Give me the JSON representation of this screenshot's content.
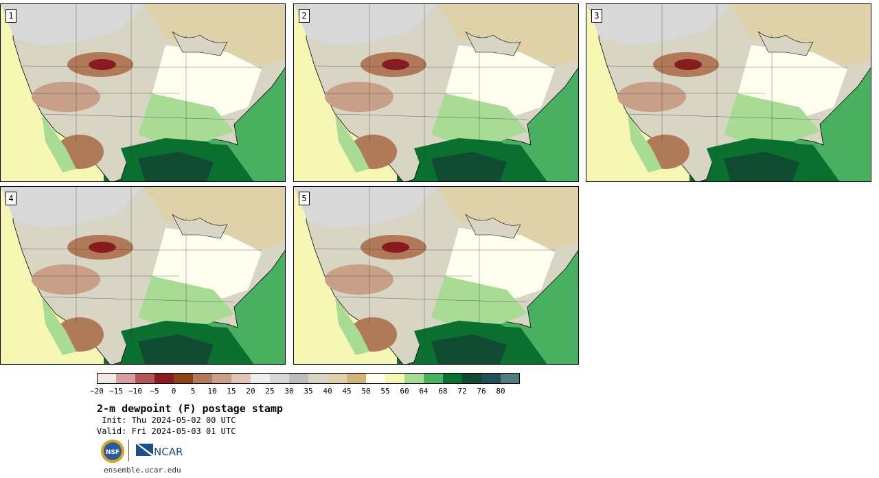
{
  "panels": [
    {
      "number": "1"
    },
    {
      "number": "2"
    },
    {
      "number": "3"
    },
    {
      "number": "4"
    },
    {
      "number": "5"
    }
  ],
  "colorbar": {
    "colors": [
      "#f2e6e6",
      "#d4a0a0",
      "#b05858",
      "#8b1a20",
      "#8b4513",
      "#b07a58",
      "#c8a088",
      "#e0c4b4",
      "#eeeeee",
      "#d8d8d8",
      "#bcbcbc",
      "#d9d5c4",
      "#e0d2a8",
      "#d2b478",
      "#fffff0",
      "#f7f7b4",
      "#a8dc94",
      "#48b060",
      "#0a7030",
      "#104a30",
      "#1e5058",
      "#4f7c80"
    ],
    "tick_labels": [
      "−20",
      "−15",
      "−10",
      "−5",
      "0",
      "5",
      "10",
      "15",
      "20",
      "25",
      "30",
      "35",
      "40",
      "45",
      "50",
      "55",
      "60",
      "64",
      "68",
      "72",
      "76",
      "80"
    ]
  },
  "title": "2-m dewpoint (F) postage stamp",
  "init_line": " Init: Thu 2024-05-02 00 UTC",
  "valid_line": "Valid: Fri 2024-05-03 01 UTC",
  "logos": {
    "nsf": "NSF",
    "ncar": "NCAR"
  },
  "site": "ensemble.ucar.edu"
}
